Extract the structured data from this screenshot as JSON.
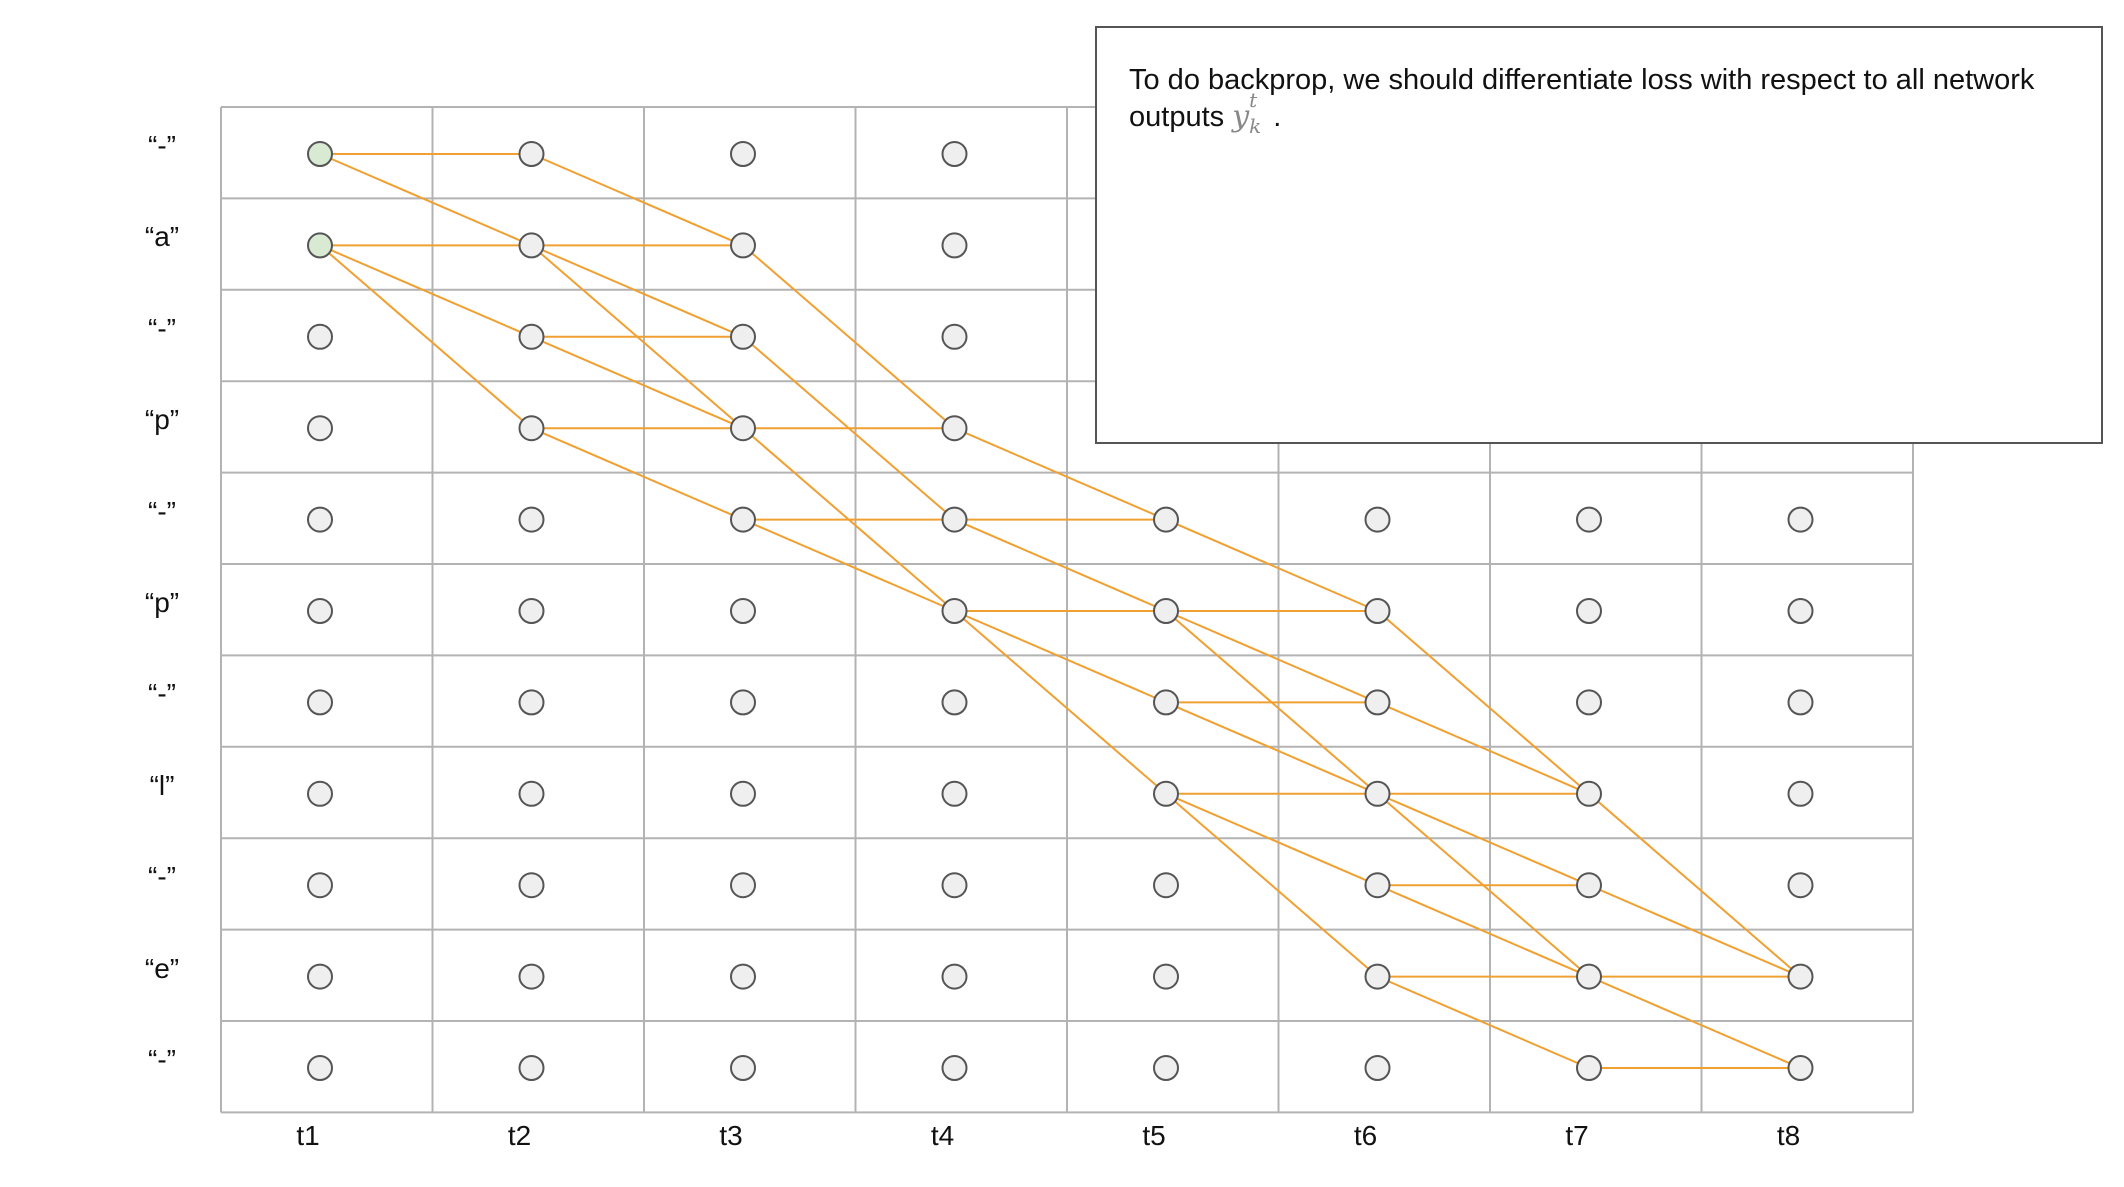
{
  "note": {
    "text_before": "To do  backprop, we should differentiate loss with respect to all network outputs",
    "math_base": "y",
    "math_sup": "t",
    "math_sub": "k",
    "text_after": "."
  },
  "rows": [
    "“-”",
    "“a”",
    "“-”",
    "“p”",
    "“-”",
    "“p”",
    "“-”",
    "“l”",
    "“-”",
    "“e”",
    "“-”"
  ],
  "columns": [
    "t1",
    "t2",
    "t3",
    "t4",
    "t5",
    "t6",
    "t7",
    "t8"
  ],
  "colors": {
    "grid_line": "#b3b3b3",
    "node_fill": "#efefef",
    "node_stroke": "#555555",
    "start_node_fill": "#d9ead3",
    "path_line": "#f0a030",
    "path_line_dark": "#e8902a"
  },
  "start_nodes": [
    [
      0,
      0
    ],
    [
      0,
      1
    ]
  ],
  "hidden_nodes": [
    [
      4,
      0
    ],
    [
      4,
      1
    ],
    [
      4,
      2
    ],
    [
      4,
      3
    ],
    [
      5,
      0
    ],
    [
      5,
      1
    ],
    [
      5,
      2
    ],
    [
      5,
      3
    ],
    [
      6,
      0
    ],
    [
      6,
      1
    ],
    [
      6,
      2
    ],
    [
      6,
      3
    ],
    [
      7,
      0
    ],
    [
      7,
      1
    ],
    [
      7,
      2
    ],
    [
      7,
      3
    ]
  ],
  "edges": [
    [
      0,
      0,
      1,
      0
    ],
    [
      0,
      0,
      1,
      1
    ],
    [
      0,
      1,
      1,
      1
    ],
    [
      0,
      1,
      1,
      2
    ],
    [
      0,
      1,
      1,
      3
    ],
    [
      1,
      0,
      2,
      1
    ],
    [
      1,
      1,
      2,
      1
    ],
    [
      1,
      1,
      2,
      2
    ],
    [
      1,
      1,
      2,
      3
    ],
    [
      1,
      2,
      2,
      2
    ],
    [
      1,
      2,
      2,
      3
    ],
    [
      1,
      3,
      2,
      3
    ],
    [
      1,
      3,
      2,
      4
    ],
    [
      2,
      1,
      3,
      3
    ],
    [
      2,
      2,
      3,
      4
    ],
    [
      2,
      3,
      3,
      3
    ],
    [
      2,
      3,
      3,
      5
    ],
    [
      2,
      4,
      3,
      4
    ],
    [
      2,
      4,
      3,
      5
    ],
    [
      3,
      3,
      4,
      4
    ],
    [
      3,
      4,
      4,
      4
    ],
    [
      3,
      4,
      4,
      5
    ],
    [
      3,
      5,
      4,
      5
    ],
    [
      3,
      5,
      4,
      6
    ],
    [
      3,
      5,
      4,
      7
    ],
    [
      4,
      4,
      5,
      5
    ],
    [
      4,
      5,
      5,
      5
    ],
    [
      4,
      5,
      5,
      6
    ],
    [
      4,
      5,
      5,
      7
    ],
    [
      4,
      6,
      5,
      6
    ],
    [
      4,
      6,
      5,
      7
    ],
    [
      4,
      7,
      5,
      7
    ],
    [
      4,
      7,
      5,
      8
    ],
    [
      4,
      7,
      5,
      9
    ],
    [
      5,
      5,
      6,
      7
    ],
    [
      5,
      6,
      6,
      7
    ],
    [
      5,
      7,
      6,
      7
    ],
    [
      5,
      7,
      6,
      8
    ],
    [
      5,
      7,
      6,
      9
    ],
    [
      5,
      8,
      6,
      8
    ],
    [
      5,
      8,
      6,
      9
    ],
    [
      5,
      9,
      6,
      9
    ],
    [
      5,
      9,
      6,
      10
    ],
    [
      6,
      7,
      7,
      9
    ],
    [
      6,
      8,
      7,
      9
    ],
    [
      6,
      9,
      7,
      9
    ],
    [
      6,
      9,
      7,
      10
    ],
    [
      6,
      10,
      7,
      10
    ]
  ]
}
